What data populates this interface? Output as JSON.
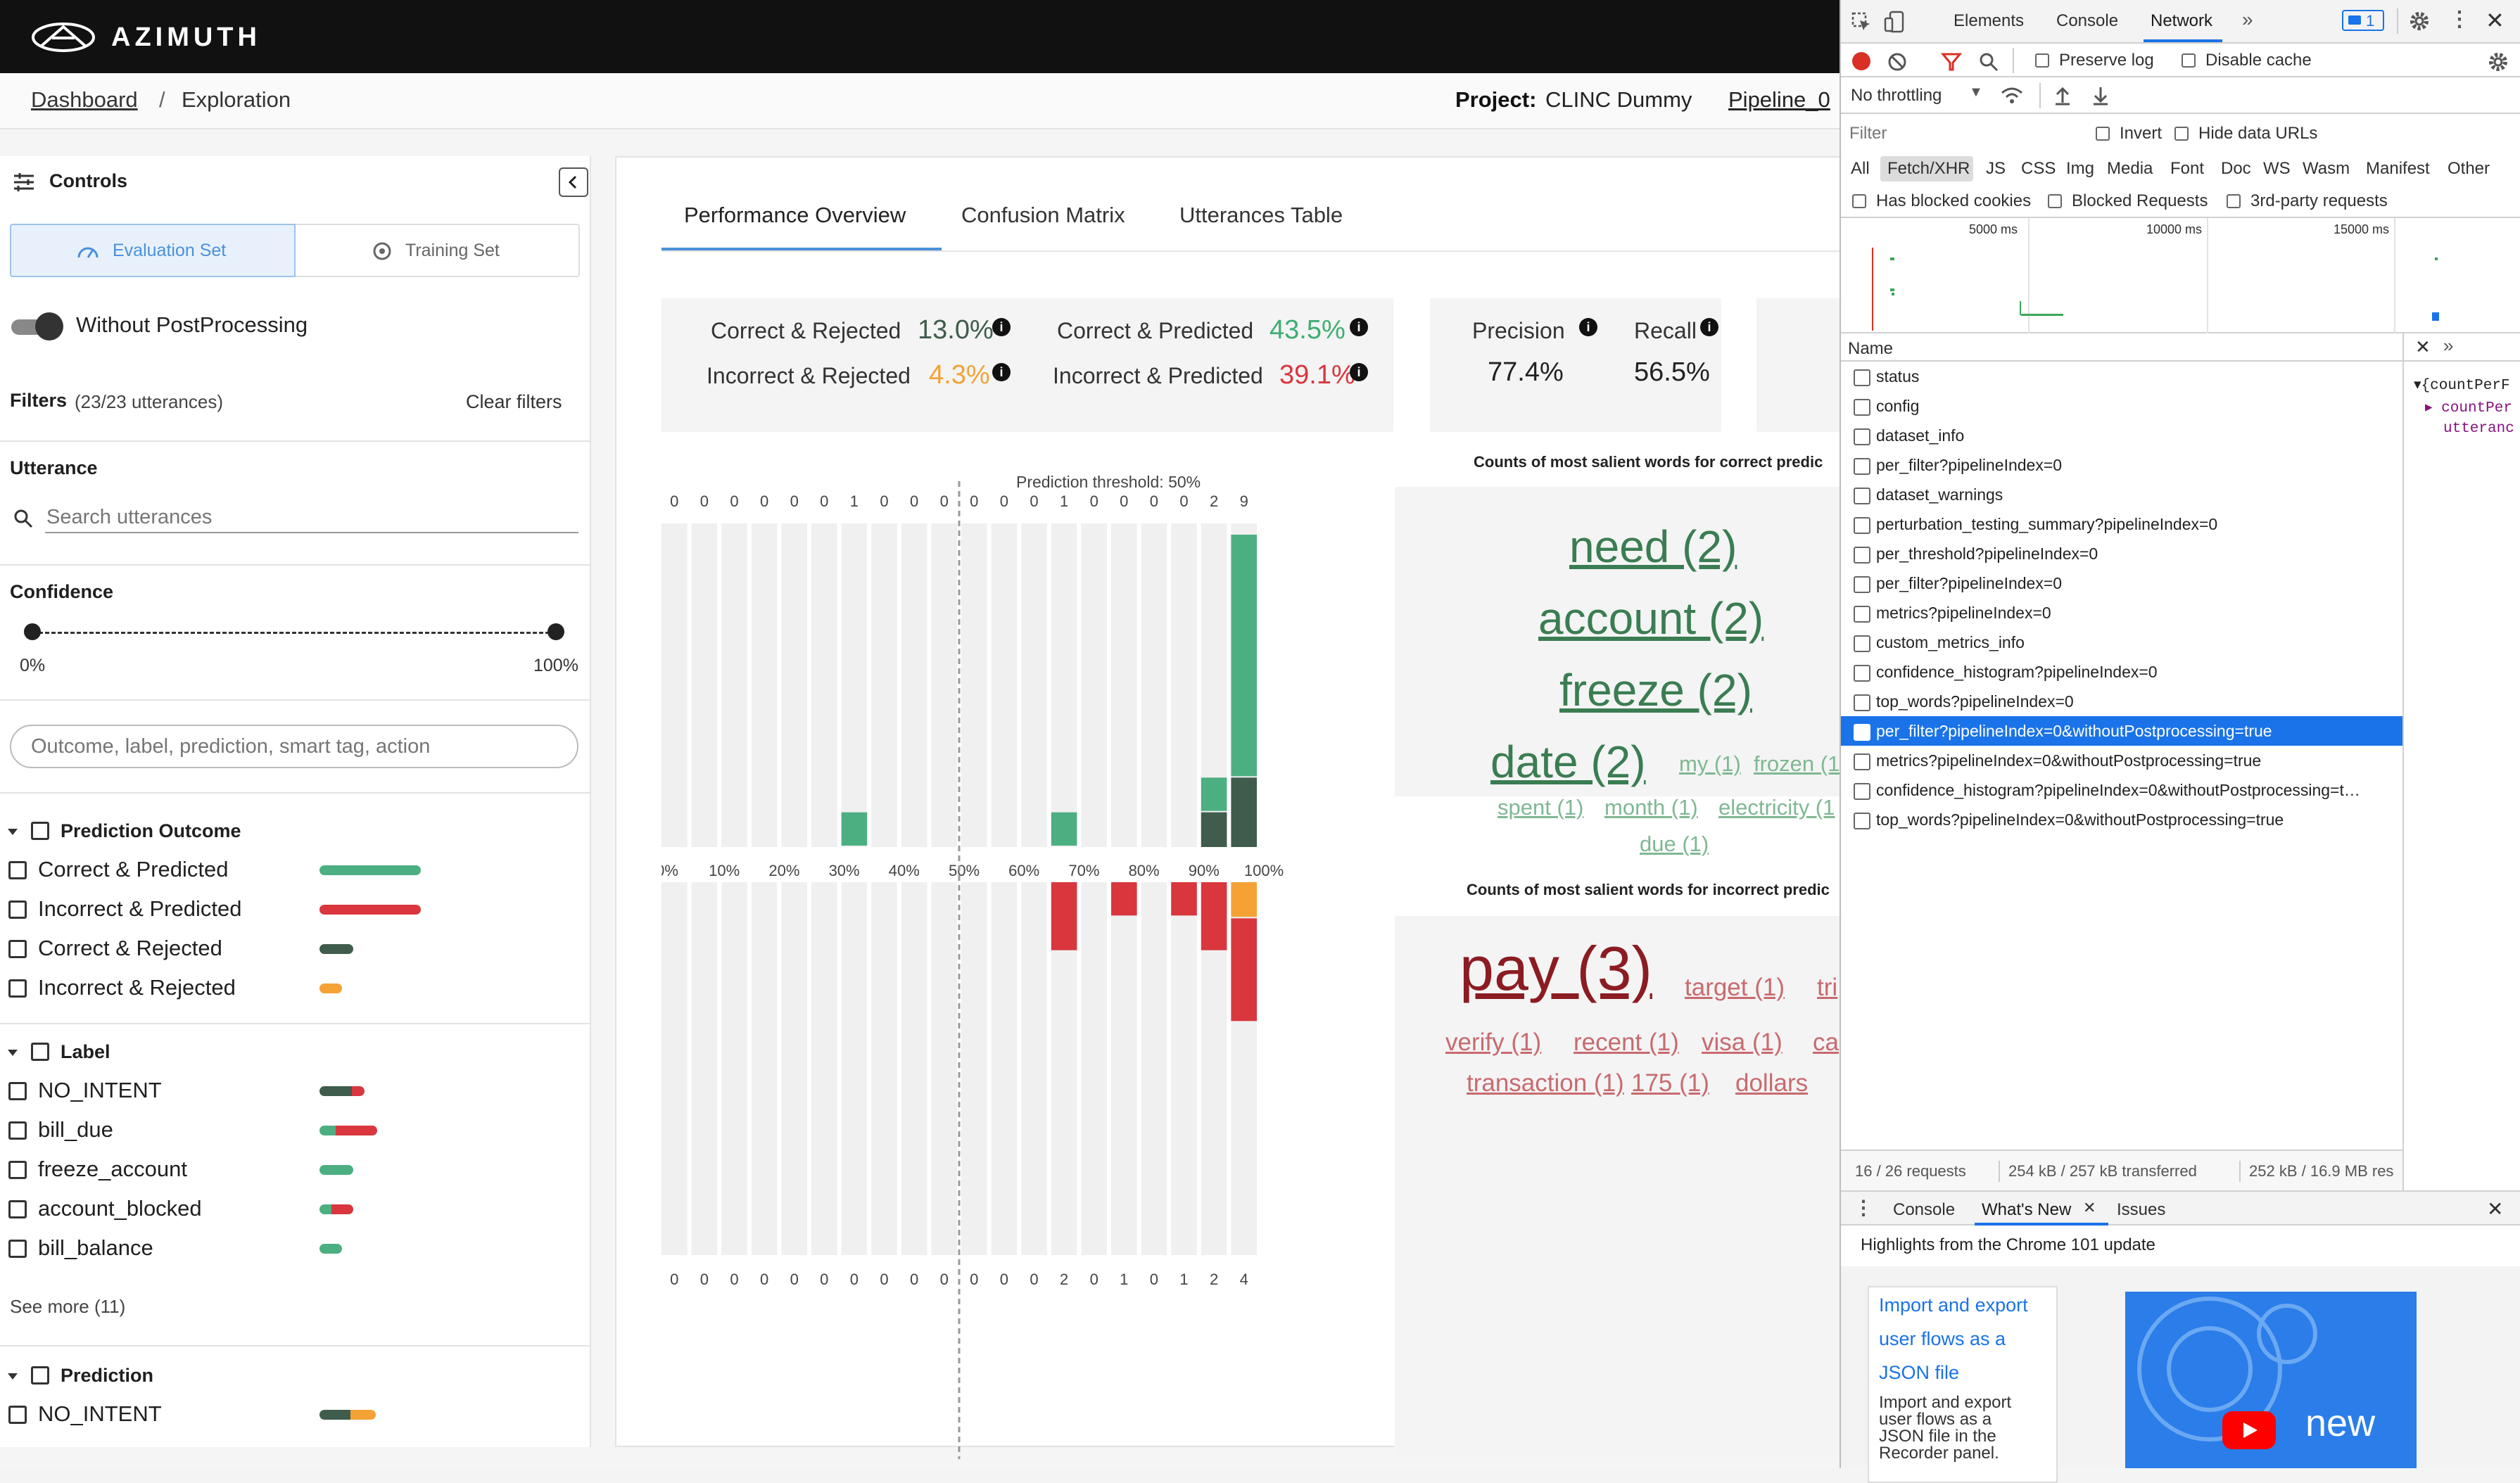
{
  "app": {
    "brand": "AZIMUTH",
    "breadcrumb": {
      "root": "Dashboard",
      "separator": "/",
      "current": "Exploration"
    },
    "project_label": "Project:",
    "project_name": "CLINC Dummy",
    "pipeline": "Pipeline_0"
  },
  "sidebar": {
    "title": "Controls",
    "tabs": [
      "Evaluation Set",
      "Training Set"
    ],
    "toggle_label": "Without PostProcessing",
    "filters_label": "Filters",
    "filters_count": "(23/23 utterances)",
    "clear_filters": "Clear filters",
    "utterance_label": "Utterance",
    "search_placeholder": "Search utterances",
    "confidence_label": "Confidence",
    "confidence_min": "0%",
    "confidence_max": "100%",
    "tag_search_placeholder": "Outcome, label, prediction, smart tag, action",
    "groups": {
      "outcome": {
        "title": "Prediction Outcome",
        "items": [
          {
            "label": "Correct & Predicted",
            "color": "#4caf82"
          },
          {
            "label": "Incorrect & Predicted",
            "color": "#d9363e"
          },
          {
            "label": "Correct & Rejected",
            "color": "#3f5c4c"
          },
          {
            "label": "Incorrect & Rejected",
            "color": "#f4a236"
          }
        ]
      },
      "label": {
        "title": "Label",
        "items": [
          "NO_INTENT",
          "bill_due",
          "freeze_account",
          "account_blocked",
          "bill_balance"
        ],
        "see_more": "See more (11)"
      },
      "prediction": {
        "title": "Prediction",
        "items": [
          "NO_INTENT"
        ]
      }
    }
  },
  "main": {
    "tabs": [
      "Performance Overview",
      "Confusion Matrix",
      "Utterances Table"
    ],
    "metrics": {
      "correct_rejected": {
        "label": "Correct & Rejected",
        "value": "13.0%",
        "color": "#3f5c4c"
      },
      "correct_predicted": {
        "label": "Correct & Predicted",
        "value": "43.5%",
        "color": "#3eae72"
      },
      "incorrect_rejected": {
        "label": "Incorrect & Rejected",
        "value": "4.3%",
        "color": "#f4a236"
      },
      "incorrect_predicted": {
        "label": "Incorrect & Predicted",
        "value": "39.1%",
        "color": "#d9363e"
      },
      "precision": {
        "label": "Precision",
        "value": "77.4%"
      },
      "recall": {
        "label": "Recall",
        "value": "56.5%"
      }
    },
    "threshold_label": "Prediction threshold: 50%",
    "correct_words_title": "Counts of most salient words for correct predic",
    "incorrect_words_title": "Counts of most salient words for incorrect predic",
    "correct_words": [
      "need (2)",
      "account (2)",
      "freeze (2)",
      "date (2)",
      "my (1)",
      "frozen (1",
      "spent (1)",
      "month (1)",
      "electricity (1",
      "due (1)"
    ],
    "incorrect_words": [
      "pay (3)",
      "target (1)",
      "tri",
      "verify (1)",
      "recent (1)",
      "visa (1)",
      "ca",
      "transaction (1)",
      "175 (1)",
      "dollars"
    ]
  },
  "chart_data": {
    "type": "bar",
    "categories": [
      "0-5%",
      "5-10%",
      "10-15%",
      "15-20%",
      "20-25%",
      "25-30%",
      "30-35%",
      "35-40%",
      "40-45%",
      "45-50%",
      "50-55%",
      "55-60%",
      "60-65%",
      "65-70%",
      "70-75%",
      "75-80%",
      "80-85%",
      "85-90%",
      "90-95%",
      "95-100%"
    ],
    "x_tick_labels": [
      "0%",
      "10%",
      "20%",
      "30%",
      "40%",
      "50%",
      "60%",
      "70%",
      "80%",
      "90%",
      "100%"
    ],
    "threshold": 50,
    "correct_counts": [
      0,
      0,
      0,
      0,
      0,
      0,
      1,
      0,
      0,
      0,
      0,
      0,
      0,
      1,
      0,
      0,
      0,
      0,
      2,
      9
    ],
    "incorrect_counts": [
      0,
      0,
      0,
      0,
      0,
      0,
      0,
      0,
      0,
      0,
      0,
      0,
      0,
      2,
      0,
      1,
      0,
      1,
      2,
      4
    ],
    "series": [
      {
        "name": "Correct & Predicted",
        "values": [
          0,
          0,
          0,
          0,
          0,
          0,
          1,
          0,
          0,
          0,
          0,
          0,
          0,
          1,
          0,
          0,
          0,
          0,
          1,
          7
        ],
        "color": "#4caf82"
      },
      {
        "name": "Correct & Rejected",
        "values": [
          0,
          0,
          0,
          0,
          0,
          0,
          0,
          0,
          0,
          0,
          0,
          0,
          0,
          0,
          0,
          0,
          0,
          0,
          1,
          2
        ],
        "color": "#3f5c4c"
      },
      {
        "name": "Incorrect & Predicted",
        "values": [
          0,
          0,
          0,
          0,
          0,
          0,
          0,
          0,
          0,
          0,
          0,
          0,
          0,
          2,
          0,
          1,
          0,
          1,
          2,
          3
        ],
        "color": "#d9363e"
      },
      {
        "name": "Incorrect & Rejected",
        "values": [
          0,
          0,
          0,
          0,
          0,
          0,
          0,
          0,
          0,
          0,
          0,
          0,
          0,
          0,
          0,
          0,
          0,
          0,
          0,
          1
        ],
        "color": "#f4a236"
      }
    ],
    "ylim": [
      0,
      9
    ]
  },
  "devtools": {
    "tabs": [
      "Elements",
      "Console",
      "Network"
    ],
    "active_tab": "Network",
    "issues_badge": "1",
    "preserve_log": "Preserve log",
    "disable_cache": "Disable cache",
    "throttling": "No throttling",
    "filter_placeholder": "Filter",
    "invert": "Invert",
    "hide_data_urls": "Hide data URLs",
    "types": [
      "All",
      "Fetch/XHR",
      "JS",
      "CSS",
      "Img",
      "Media",
      "Font",
      "Doc",
      "WS",
      "Wasm",
      "Manifest",
      "Other"
    ],
    "has_blocked_cookies": "Has blocked cookies",
    "blocked_requests": "Blocked Requests",
    "third_party": "3rd-party requests",
    "timeline_ticks": [
      "5000 ms",
      "10000 ms",
      "15000 ms"
    ],
    "name_header": "Name",
    "requests": [
      "status",
      "config",
      "dataset_info",
      "per_filter?pipelineIndex=0",
      "dataset_warnings",
      "perturbation_testing_summary?pipelineIndex=0",
      "per_threshold?pipelineIndex=0",
      "per_filter?pipelineIndex=0",
      "metrics?pipelineIndex=0",
      "custom_metrics_info",
      "confidence_histogram?pipelineIndex=0",
      "top_words?pipelineIndex=0",
      "per_filter?pipelineIndex=0&withoutPostprocessing=true",
      "metrics?pipelineIndex=0&withoutPostprocessing=true",
      "confidence_histogram?pipelineIndex=0&withoutPostprocessing=t…",
      "top_words?pipelineIndex=0&withoutPostprocessing=true"
    ],
    "selected_index": 12,
    "preview_lines": [
      "▾{countPerF",
      "▸ countPer",
      "utteranc"
    ],
    "status_requests": "16 / 26 requests",
    "status_transferred": "254 kB / 257 kB transferred",
    "status_resources": "252 kB / 16.9 MB res",
    "drawer_tabs": [
      "Console",
      "What's New",
      "Issues"
    ],
    "highlights": "Highlights from the Chrome 101 update",
    "whats_new_link": [
      "Import and export",
      "user flows as a",
      "JSON file"
    ],
    "whats_new_desc": [
      "Import and export",
      "user flows as a",
      "JSON file in the",
      "Recorder panel."
    ],
    "video_text": "new"
  }
}
